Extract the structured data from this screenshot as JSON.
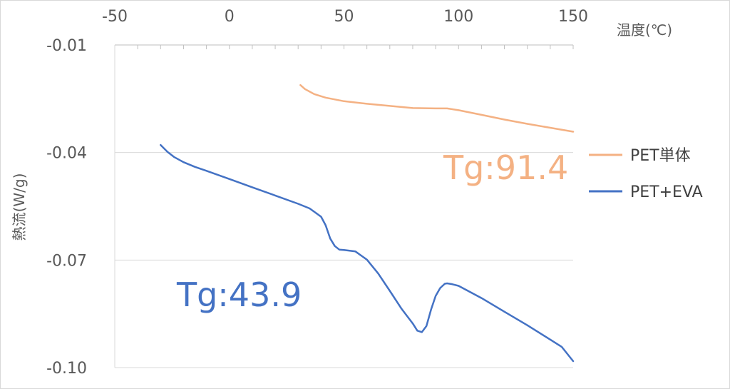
{
  "chart_data": {
    "type": "line",
    "xlabel": "温度(℃)",
    "ylabel": "熱流(W/g)",
    "xlim": [
      -50,
      150
    ],
    "ylim": [
      -0.1,
      -0.01
    ],
    "x_ticks": [
      "-50",
      "0",
      "50",
      "100",
      "150"
    ],
    "y_ticks": [
      "-0.01",
      "-0.04",
      "-0.07",
      "-0.10"
    ],
    "x_tick_values": [
      -50,
      0,
      50,
      100,
      150
    ],
    "y_tick_values": [
      -0.01,
      -0.04,
      -0.07,
      -0.1
    ],
    "grid": "horizontal",
    "legend_position": "right",
    "series": [
      {
        "name": "PET単体",
        "color": "#F4B183",
        "x": [
          31,
          33,
          37,
          42,
          50,
          60,
          70,
          80,
          90,
          95,
          100,
          110,
          120,
          130,
          140,
          150
        ],
        "y": [
          -0.0212,
          -0.0223,
          -0.0237,
          -0.0247,
          -0.0257,
          -0.0264,
          -0.027,
          -0.0276,
          -0.0277,
          -0.0277,
          -0.0282,
          -0.0295,
          -0.0308,
          -0.032,
          -0.0331,
          -0.0342
        ]
      },
      {
        "name": "PET+EVA",
        "color": "#4472C4",
        "x": [
          -30,
          -27,
          -24,
          -20,
          -15,
          -10,
          0,
          10,
          20,
          30,
          35,
          40,
          42,
          44,
          46,
          48,
          50,
          55,
          60,
          65,
          70,
          75,
          80,
          82,
          84,
          86,
          88,
          90,
          92,
          94,
          95,
          97,
          100,
          110,
          120,
          130,
          140,
          145,
          150
        ],
        "y": [
          -0.0379,
          -0.0398,
          -0.0413,
          -0.0427,
          -0.044,
          -0.0451,
          -0.0474,
          -0.0497,
          -0.052,
          -0.0543,
          -0.0556,
          -0.0579,
          -0.0603,
          -0.064,
          -0.0661,
          -0.0671,
          -0.0672,
          -0.0676,
          -0.0699,
          -0.0738,
          -0.0786,
          -0.0835,
          -0.0877,
          -0.0897,
          -0.0901,
          -0.0884,
          -0.0838,
          -0.08,
          -0.0778,
          -0.0766,
          -0.0765,
          -0.0767,
          -0.0772,
          -0.0806,
          -0.0844,
          -0.0882,
          -0.0922,
          -0.0942,
          -0.0982
        ]
      }
    ],
    "annotations": [
      {
        "text": "Tg:91.4",
        "color": "#F4B183",
        "series": "PET単体"
      },
      {
        "text": "Tg:43.9",
        "color": "#4472C4",
        "series": "PET+EVA"
      }
    ]
  }
}
